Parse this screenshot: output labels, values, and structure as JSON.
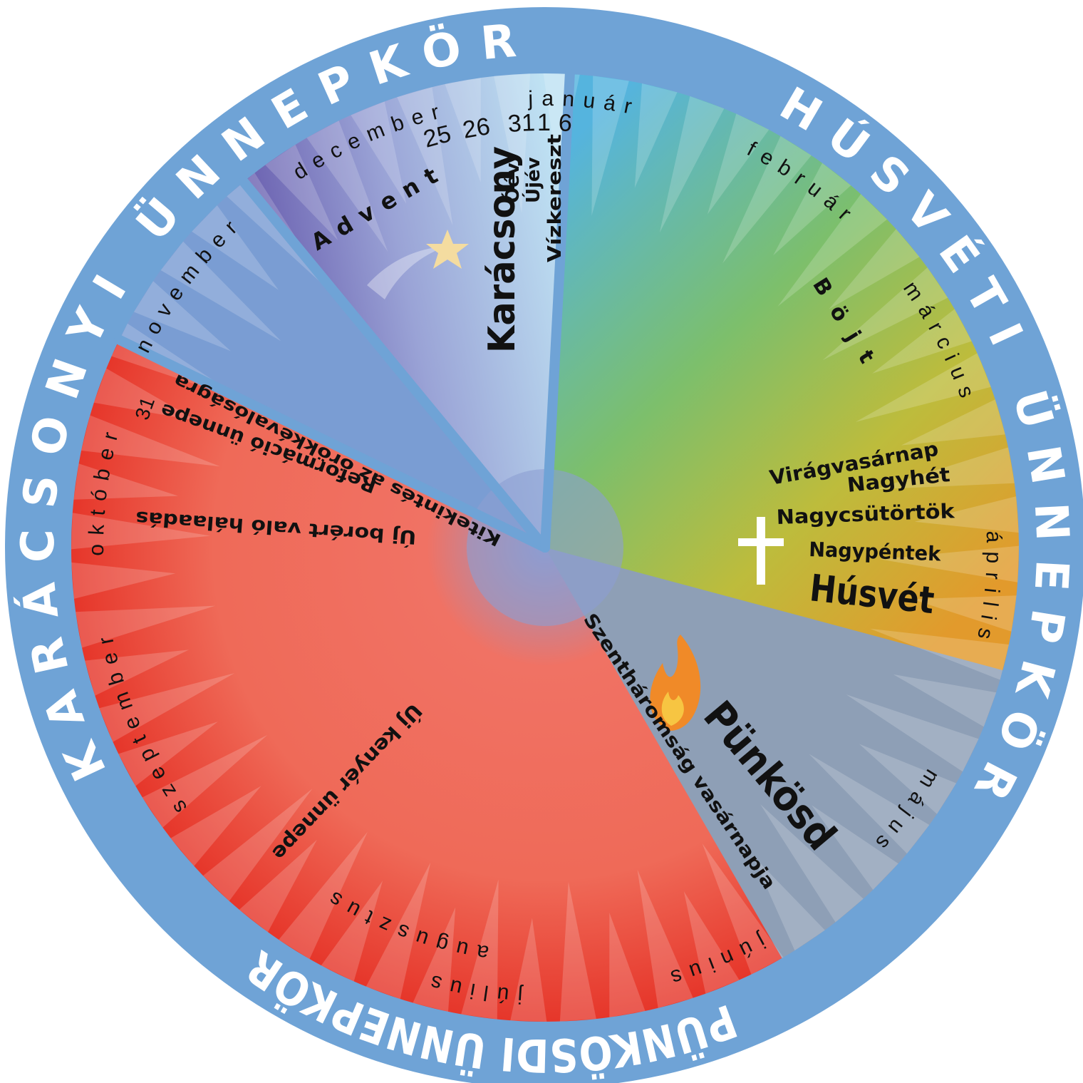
{
  "ring_titles": [
    "KARÁCSONYI ÜNNEPKÖR",
    "HÚSVÉTI ÜNNEPKÖR",
    "PÜNKÖSDI ÜNNEPKÖR"
  ],
  "months": [
    "január",
    "február",
    "március",
    "április",
    "május",
    "június",
    "július",
    "augusztus",
    "szeptember",
    "október",
    "november",
    "december"
  ],
  "days": [
    "25",
    "26",
    "31",
    "1",
    "6"
  ],
  "reformation_day": "31",
  "feasts": {
    "advent": "Advent",
    "christmas": "Karácsony",
    "old_year": "Óév",
    "new_year": "Újév",
    "epiphany": "Vízkereszt",
    "lent": "Böjt",
    "palm_sunday": "Virágvasárnap",
    "holy_week": "Nagyhét",
    "maundy_thursday": "Nagycsütörtök",
    "good_friday": "Nagypéntek",
    "easter": "Húsvét",
    "pentecost": "Pünkösd",
    "trinity_sunday": "Szentháromság vasárnapja",
    "new_bread": "Új kenyér ünnepe",
    "new_wine": "Új borért való hálaadás",
    "reformation": "Reformáció ünnepe",
    "eternity": "Kitekintés az örökkévalóságra"
  }
}
